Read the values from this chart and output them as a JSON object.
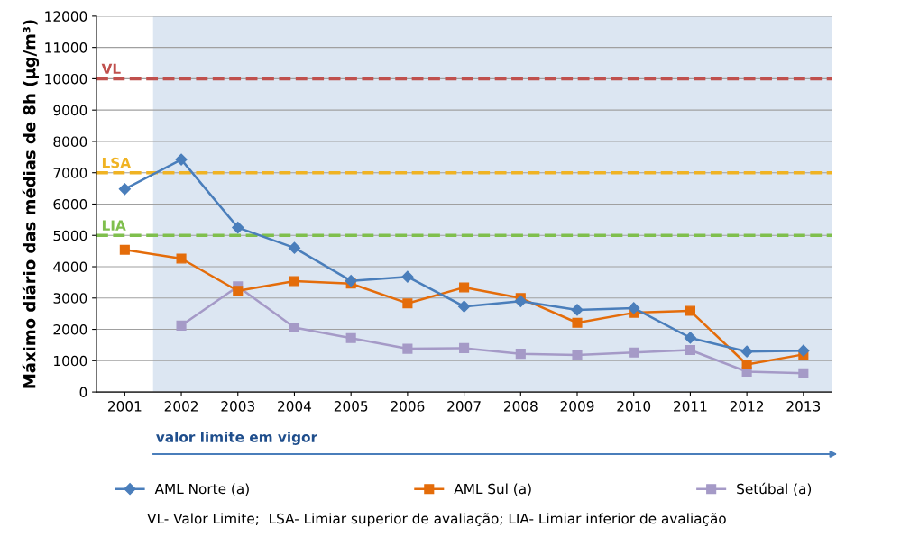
{
  "chart_data": {
    "type": "line",
    "ylabel": "Máximo diário das médias de 8h (µg/m³)",
    "categories": [
      "2001",
      "2002",
      "2003",
      "2004",
      "2005",
      "2006",
      "2007",
      "2008",
      "2009",
      "2010",
      "2011",
      "2012",
      "2013"
    ],
    "series": [
      {
        "name": "AML Norte (a)",
        "color": "#4a7ebb",
        "marker": "diamond",
        "values": [
          6480,
          7420,
          5250,
          4600,
          3550,
          3680,
          2730,
          2900,
          2620,
          2680,
          1730,
          1290,
          1320
        ]
      },
      {
        "name": "AML Sul (a)",
        "color": "#e46c0a",
        "marker": "square",
        "values": [
          4540,
          4260,
          3230,
          3540,
          3460,
          2830,
          3340,
          3000,
          2210,
          2530,
          2590,
          880,
          1200
        ]
      },
      {
        "name": "Setúbal (a)",
        "color": "#a59ac7",
        "marker": "square",
        "values": [
          null,
          2120,
          3370,
          2060,
          1720,
          1380,
          1400,
          1220,
          1180,
          1260,
          1340,
          650,
          600
        ]
      }
    ],
    "ylim": [
      0,
      12000
    ],
    "yticks": [
      0,
      1000,
      2000,
      3000,
      4000,
      5000,
      6000,
      7000,
      8000,
      9000,
      10000,
      11000,
      12000
    ],
    "grid": "y",
    "legend": "bottom",
    "line_style": "solid",
    "ref_lines": [
      {
        "axis": "y",
        "value": 10000,
        "label": "VL",
        "color": "#c0504d",
        "line_style": "dashed"
      },
      {
        "axis": "y",
        "value": 7000,
        "label": "LSA",
        "color": "#f0b323",
        "line_style": "dashed"
      },
      {
        "axis": "y",
        "value": 5000,
        "label": "LIA",
        "color": "#7fbf4d",
        "line_style": "dashed"
      }
    ],
    "bands": [
      {
        "axis": "x",
        "from": "2002",
        "to": "2013",
        "label": "valor limite em vigor",
        "color": "#dce6f2"
      }
    ],
    "annotations": [
      "VL- Valor Limite;  LSA- Limiar superior de avaliação; LIA- Limiar inferior de avaliação"
    ]
  }
}
